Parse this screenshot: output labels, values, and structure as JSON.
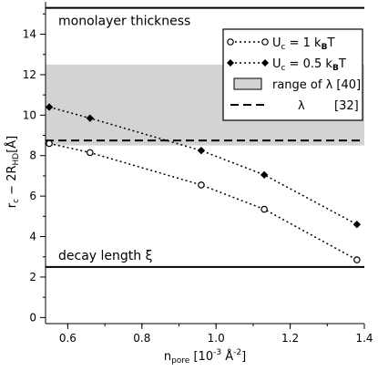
{
  "chart_data": {
    "type": "line",
    "xlim": [
      0.54,
      1.4
    ],
    "ylim": [
      -0.3,
      15.6
    ],
    "x_ticks": [
      0.6,
      0.8,
      1.0,
      1.2,
      1.4
    ],
    "x_tick_labels": [
      "0.6",
      "0.8",
      "1.0",
      "1.2",
      "1.4"
    ],
    "y_ticks": [
      0,
      2,
      4,
      6,
      8,
      10,
      12,
      14
    ],
    "y_tick_labels": [
      "0",
      "2",
      "4",
      "6",
      "8",
      "10",
      "12",
      "14"
    ],
    "xlabel": {
      "base": "n",
      "sub": "pore",
      "rest": " [10",
      "sup": "-3",
      "unit": " Å",
      "unit_sup": "-2",
      "end": "]"
    },
    "ylabel": {
      "base": "r",
      "sub1": "c",
      "mid": " − 2R",
      "sub2": "HD",
      "end": "[Å]"
    },
    "grid": false,
    "legend_placement": "top-right",
    "series": [
      {
        "name": "U_c = 1 k_BT",
        "color": "#000000",
        "line": "dotted",
        "marker": "open-circle",
        "x": [
          0.55,
          0.66,
          0.96,
          1.13,
          1.38
        ],
        "y": [
          8.6,
          8.15,
          6.55,
          5.35,
          2.85
        ]
      },
      {
        "name": "U_c = 0.5 k_BT",
        "color": "#000000",
        "line": "dotted",
        "marker": "filled-diamond",
        "x": [
          0.55,
          0.66,
          0.96,
          1.13,
          1.38
        ],
        "y": [
          10.4,
          9.85,
          8.25,
          7.05,
          4.6
        ]
      }
    ],
    "reference_lines": [
      {
        "y": 15.3,
        "label": "monolayer thickness",
        "style": "solid"
      },
      {
        "y": 2.5,
        "label": "decay length  ξ",
        "style": "solid"
      },
      {
        "y": 8.75,
        "label": "λ",
        "style": "dashed"
      }
    ],
    "shaded_band": {
      "y_from": 8.5,
      "y_to": 12.5,
      "color": "#d3d3d3",
      "label": "range of λ [40]"
    },
    "legend": {
      "entries": [
        {
          "kind": "circle-line",
          "base": "U",
          "sub": "c",
          "rest": " = 1 k",
          "sub2": "B",
          "end": "T"
        },
        {
          "kind": "diamond-line",
          "base": "U",
          "sub": "c",
          "rest": " = 0.5 k",
          "sub2": "B",
          "end": "T"
        },
        {
          "kind": "swatch",
          "text": "range of λ [40]"
        },
        {
          "kind": "dash",
          "text": "λ",
          "ref": "[32]"
        }
      ]
    }
  }
}
